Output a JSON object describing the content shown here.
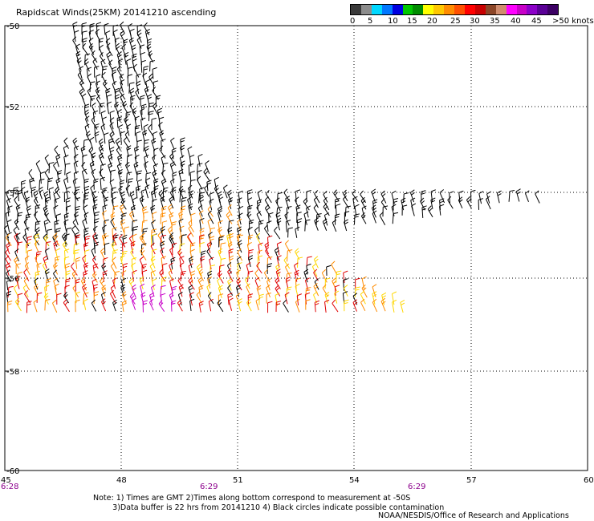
{
  "title": "Rapidscat Winds(25KM) 20141210 ascending",
  "colorbar": {
    "colors": [
      "#3a3a3a",
      "#8c8c8c",
      "#00d8ff",
      "#0078ff",
      "#0000e0",
      "#00c800",
      "#008c00",
      "#ffff00",
      "#ffc800",
      "#ff8c00",
      "#ff5000",
      "#ff0000",
      "#c80000",
      "#8c4628",
      "#d08c6e",
      "#ff00ff",
      "#c800c8",
      "#8c00c8",
      "#5a0096",
      "#3c0064"
    ],
    "labels": [
      "0",
      "5",
      "10",
      "15",
      "20",
      "25",
      "30",
      "35",
      "40",
      "45",
      ">50 knots"
    ]
  },
  "map": {
    "x_ticks": [
      "45",
      "48",
      "51",
      "54",
      "57",
      "60"
    ],
    "y_ticks": [
      "-50",
      "-52",
      "-54",
      "-56",
      "-58",
      "-60"
    ],
    "time_labels": [
      "6:28",
      "6:29",
      "6:29"
    ],
    "time_color": "#8c008c",
    "wind_colors": {
      "calm": "#000000",
      "20kt": "#ffd700",
      "25kt": "#ff8c00",
      "35kt": "#e00000",
      "45kt": "#c800c8"
    }
  },
  "footnote": "Note: 1) Times are GMT 2)Times along bottom correspond to measurement at -50S\n        3)Data buffer is 22 hrs from 20141210 4) Black circles indicate possible contamination",
  "credit": "NOAA/NESDIS/Office of Research and Applications"
}
